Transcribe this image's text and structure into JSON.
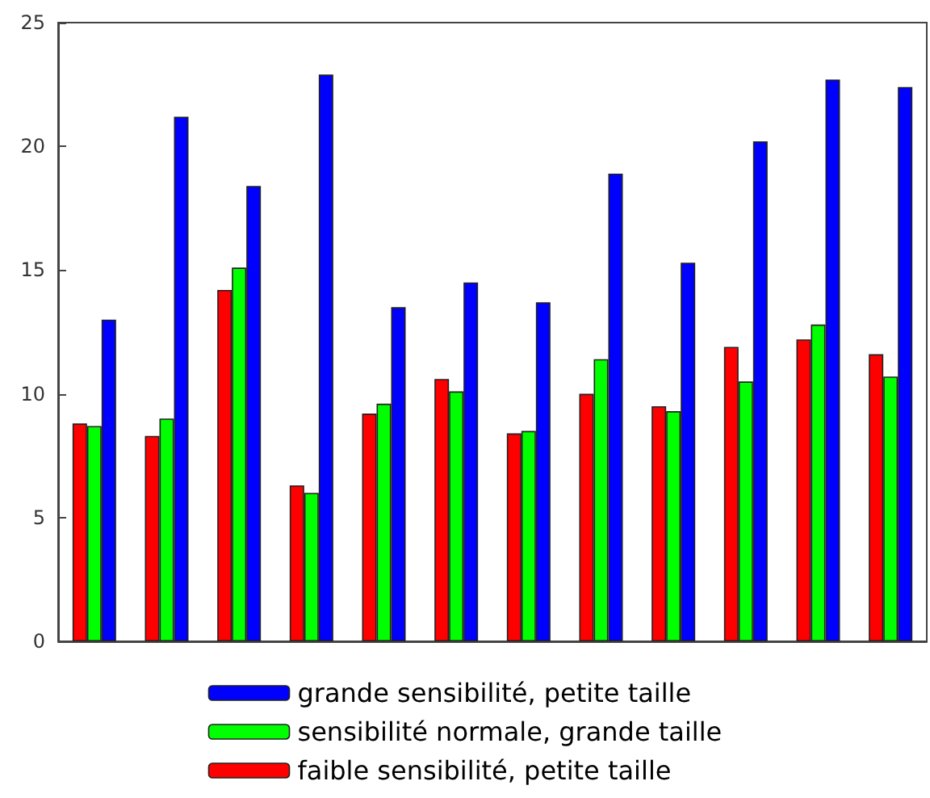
{
  "chart_data": {
    "type": "bar",
    "categories": [
      null,
      null,
      null,
      null,
      null,
      null,
      null,
      null,
      null,
      null,
      null,
      null
    ],
    "series": [
      {
        "name": "faible sensibilité, petite taille",
        "color": "#ff0000",
        "values": [
          8.8,
          8.3,
          14.2,
          6.3,
          9.2,
          10.6,
          8.4,
          10.0,
          9.5,
          11.9,
          12.2,
          11.6
        ]
      },
      {
        "name": "sensibilité normale, grande taille",
        "color": "#00ff00",
        "values": [
          8.7,
          9.0,
          15.1,
          6.0,
          9.6,
          10.1,
          8.5,
          11.4,
          9.3,
          10.5,
          12.8,
          10.7
        ]
      },
      {
        "name": "grande sensibilité, petite taille",
        "color": "#0000ff",
        "values": [
          13.0,
          21.2,
          18.4,
          22.9,
          13.5,
          14.5,
          13.7,
          18.9,
          15.3,
          20.2,
          22.7,
          22.4
        ]
      }
    ],
    "ylim": [
      0,
      25
    ],
    "yticks": [
      0,
      5,
      10,
      15,
      20,
      25
    ],
    "grid": false,
    "legend": "bottom"
  }
}
